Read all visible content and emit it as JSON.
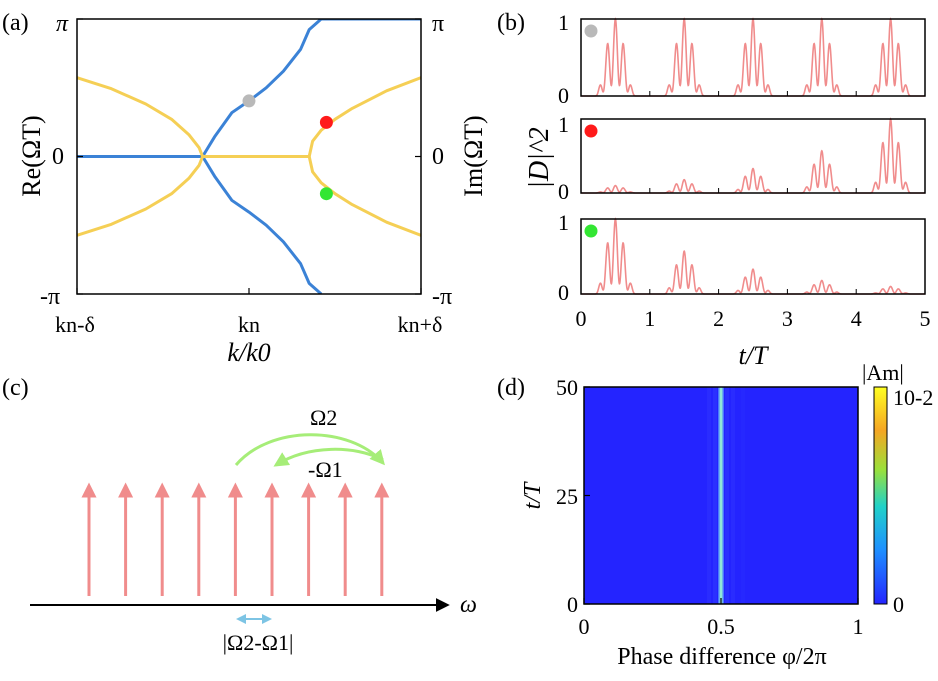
{
  "panel_labels": {
    "a": "(a)",
    "b": "(b)",
    "c": "(c)",
    "d": "(d)"
  },
  "colors": {
    "blue": "#3b82d6",
    "yellow": "#f5cf55",
    "pink": "#f08c8c",
    "green": "#a6ed78",
    "cyan": "#7dc4e4",
    "gray_dot": "#b9b9b9",
    "red_dot": "#ff1a1a",
    "green_dot": "#33e633",
    "heat_bg": "#2424ff"
  },
  "chart_data": [
    {
      "panel": "(a)",
      "type": "line",
      "xlabel": "k/k0",
      "ylabel_left": "Re(ΩT)",
      "ylabel_right": "Im(ΩT)",
      "x_ticks": [
        "kn-δ",
        "kn",
        "kn+δ"
      ],
      "y_ticks_left": [
        "π",
        "0",
        "-π"
      ],
      "y_ticks_right": [
        "π",
        "0",
        "-π"
      ],
      "x_range": [
        -1,
        1
      ],
      "y_range": [
        -3.14159,
        3.14159
      ],
      "series": [
        {
          "color": "blue",
          "x": [
            -1.0,
            -0.6,
            -0.27,
            -0.2,
            -0.1,
            0.0,
            0.1,
            0.2,
            0.3,
            0.35,
            0.42,
            0.7,
            1.0
          ],
          "y": [
            0.0,
            0.0,
            0.0,
            0.45,
            1.0,
            1.27,
            1.57,
            1.95,
            2.45,
            2.9,
            3.14159,
            3.14159,
            3.14159
          ]
        },
        {
          "color": "blue",
          "x": [
            -0.27,
            -0.2,
            -0.1,
            0.0,
            0.1,
            0.2,
            0.3,
            0.35,
            0.42
          ],
          "y": [
            0.0,
            -0.45,
            -1.0,
            -1.27,
            -1.57,
            -1.95,
            -2.45,
            -2.9,
            -3.14159
          ]
        },
        {
          "color": "yellow",
          "x": [
            -1.0,
            -0.8,
            -0.6,
            -0.45,
            -0.35,
            -0.29,
            -0.27
          ],
          "y": [
            1.8,
            1.55,
            1.2,
            0.85,
            0.5,
            0.2,
            0.0
          ]
        },
        {
          "color": "yellow",
          "x": [
            -1.0,
            -0.8,
            -0.6,
            -0.45,
            -0.35,
            -0.29,
            -0.27
          ],
          "y": [
            -1.8,
            -1.55,
            -1.2,
            -0.85,
            -0.5,
            -0.2,
            0.0
          ]
        },
        {
          "color": "yellow",
          "x": [
            -0.27,
            0.35
          ],
          "y": [
            0.0,
            0.0
          ]
        },
        {
          "color": "yellow",
          "x": [
            0.35,
            0.37,
            0.42,
            0.5,
            0.6,
            0.8,
            1.0
          ],
          "y": [
            0.0,
            0.35,
            0.6,
            0.85,
            1.1,
            1.5,
            1.8
          ]
        },
        {
          "color": "yellow",
          "x": [
            0.35,
            0.37,
            0.42,
            0.5,
            0.6,
            0.8,
            1.0
          ],
          "y": [
            0.0,
            -0.35,
            -0.6,
            -0.85,
            -1.1,
            -1.5,
            -1.8
          ]
        }
      ],
      "points": [
        {
          "color": "gray_dot",
          "x": 0.0,
          "y": 1.27
        },
        {
          "color": "red_dot",
          "x": 0.45,
          "y": 0.78
        },
        {
          "color": "green_dot",
          "x": 0.45,
          "y": -0.85
        }
      ]
    },
    {
      "panel": "(b)",
      "type": "line",
      "xlabel": "t/T",
      "ylabel": "|D|^2",
      "x_ticks": [
        "0",
        "1",
        "2",
        "3",
        "4",
        "5"
      ],
      "y_ticks": [
        "0",
        "1"
      ],
      "x_range": [
        0,
        5
      ],
      "y_range": [
        0,
        1
      ],
      "envelope_pulse_centers": [
        0.5,
        1.5,
        2.5,
        3.5,
        4.5
      ],
      "subplots": [
        {
          "marker": "gray_dot",
          "peaks": [
            1.0,
            1.0,
            1.0,
            1.0,
            1.0
          ]
        },
        {
          "marker": "red_dot",
          "peaks": [
            0.1,
            0.18,
            0.33,
            0.57,
            1.0
          ]
        },
        {
          "marker": "green_dot",
          "peaks": [
            1.0,
            0.57,
            0.33,
            0.18,
            0.1
          ]
        }
      ]
    },
    {
      "panel": "(d)",
      "type": "heatmap",
      "xlabel": "Phase difference φ/2π",
      "ylabel": "t/T",
      "x_ticks": [
        "0",
        "0.5",
        "1"
      ],
      "y_ticks": [
        "0",
        "25",
        "50"
      ],
      "x_range": [
        0,
        1
      ],
      "y_range": [
        0,
        50
      ],
      "colorbar": {
        "label": "|Am|",
        "max_label": "10-2",
        "min_label": "0"
      },
      "highlight_x": 0.5
    }
  ],
  "diagram_c": {
    "omega_label": "ω",
    "arrow_count": 9,
    "omega2_label": "Ω2",
    "neg_omega1_label": "-Ω1",
    "spacing_label": "|Ω2-Ω1|"
  }
}
